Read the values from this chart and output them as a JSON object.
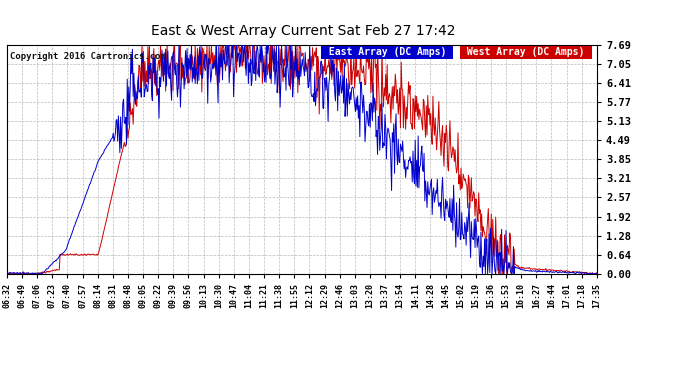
{
  "title": "East & West Array Current Sat Feb 27 17:42",
  "copyright": "Copyright 2016 Cartronics.com",
  "east_legend": "East Array (DC Amps)",
  "west_legend": "West Array (DC Amps)",
  "east_color": "#0000cc",
  "west_color": "#cc0000",
  "legend_east_bg": "#0000cc",
  "legend_west_bg": "#cc0000",
  "bg_color": "#ffffff",
  "plot_bg": "#ffffff",
  "grid_color": "#aaaaaa",
  "yticks": [
    0.0,
    0.64,
    1.28,
    1.92,
    2.57,
    3.21,
    3.85,
    4.49,
    5.13,
    5.77,
    6.41,
    7.05,
    7.69
  ],
  "ylim": [
    0.0,
    7.69
  ],
  "time_labels": [
    "06:32",
    "06:49",
    "07:06",
    "07:23",
    "07:40",
    "07:57",
    "08:14",
    "08:31",
    "08:48",
    "09:05",
    "09:22",
    "09:39",
    "09:56",
    "10:13",
    "10:30",
    "10:47",
    "11:04",
    "11:21",
    "11:38",
    "11:55",
    "12:12",
    "12:29",
    "12:46",
    "13:03",
    "13:20",
    "13:37",
    "13:54",
    "14:11",
    "14:28",
    "14:45",
    "15:02",
    "15:19",
    "15:36",
    "15:53",
    "16:10",
    "16:27",
    "16:44",
    "17:01",
    "17:18",
    "17:35"
  ]
}
